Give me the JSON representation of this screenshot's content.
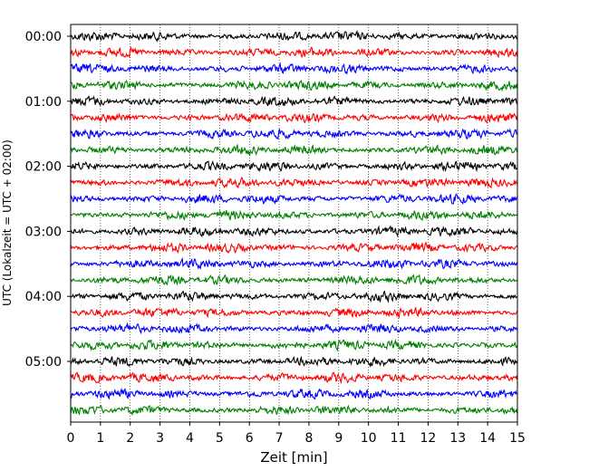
{
  "chart_data": {
    "type": "line",
    "title": "",
    "xlabel": "Zeit  [min]",
    "ylabel": "UTC (Lokalzeit = UTC + 02:00)",
    "xlim": [
      0,
      15
    ],
    "x_ticks": [
      "0",
      "1",
      "2",
      "3",
      "4",
      "5",
      "6",
      "7",
      "8",
      "9",
      "10",
      "11",
      "12",
      "13",
      "14",
      "15"
    ],
    "y_ticks": [
      "00:00",
      "01:00",
      "02:00",
      "03:00",
      "04:00",
      "05:00"
    ],
    "minutes_per_trace": 15,
    "trace_count": 24,
    "trace_colors": [
      "#000000",
      "#ff0000",
      "#0000ff",
      "#008000"
    ],
    "grid": "vertical dotted lines at each minute",
    "legend": "none"
  }
}
